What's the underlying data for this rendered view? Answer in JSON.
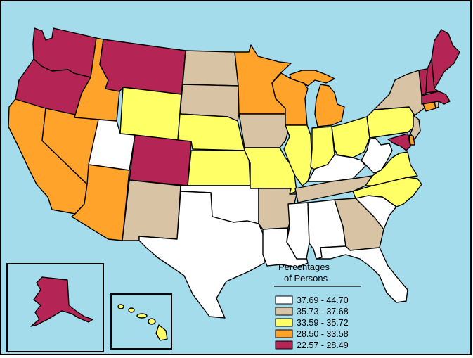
{
  "legend": {
    "title_line1": "Percentages",
    "title_line2": "of Persons",
    "classes": [
      {
        "label": "37.69 - 44.70",
        "color": "#ffffff"
      },
      {
        "label": "35.73 - 37.68",
        "color": "#d8c4a4"
      },
      {
        "label": "33.59 - 35.72",
        "color": "#ffff66"
      },
      {
        "label": "28.50 - 33.58",
        "color": "#ffa32a"
      },
      {
        "label": "22.57 - 28.49",
        "color": "#b42555"
      }
    ]
  },
  "colors": {
    "ocean": "#a5dcec",
    "outline": "#000000"
  }
}
